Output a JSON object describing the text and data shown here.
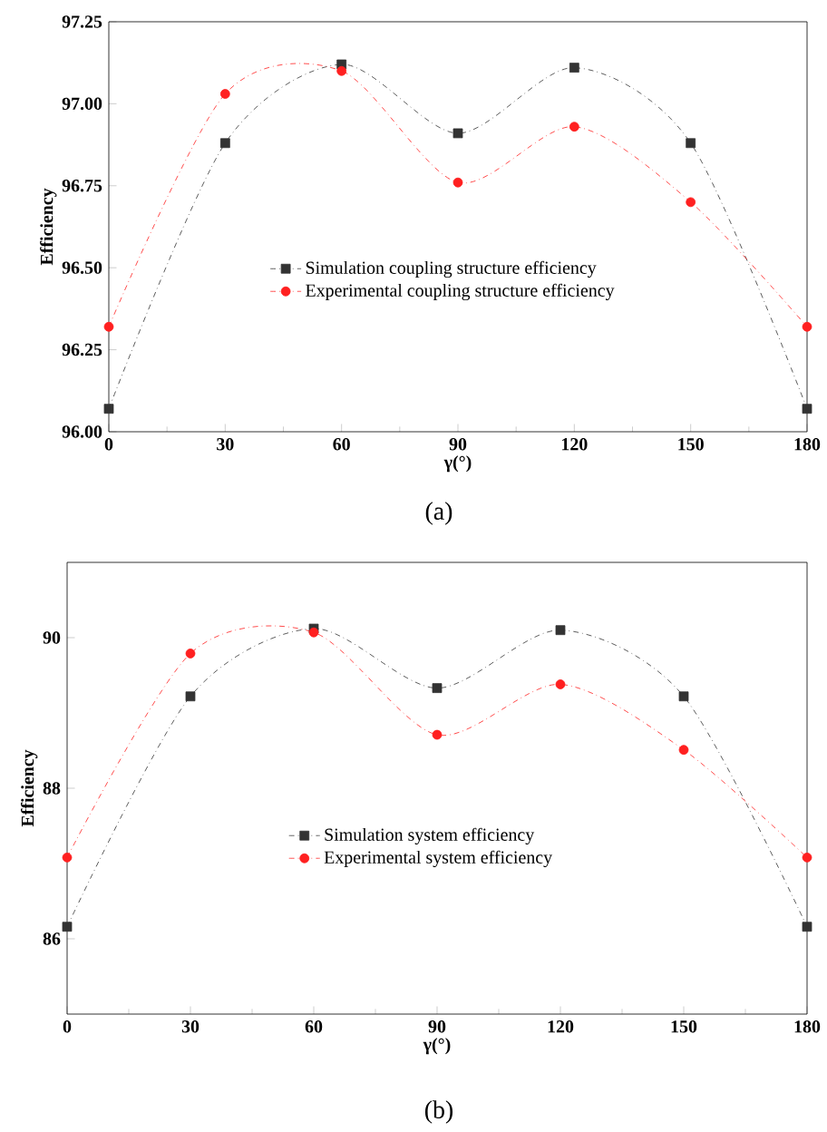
{
  "chart_data": [
    {
      "type": "line",
      "xlabel": "γ(°)",
      "ylabel": "Efficiency",
      "annotations": [
        "(a)"
      ],
      "x": [
        0,
        30,
        60,
        90,
        120,
        150,
        180
      ],
      "xlim": [
        0,
        180
      ],
      "xticks": [
        0,
        30,
        60,
        90,
        120,
        150,
        180
      ],
      "ylim": [
        96.0,
        97.25
      ],
      "yticks": [
        {
          "value": 96.0,
          "label": "96.00"
        },
        {
          "value": 96.25,
          "label": "96.25"
        },
        {
          "value": 96.5,
          "label": "96.50"
        },
        {
          "value": 96.75,
          "label": "96.75"
        },
        {
          "value": 97.0,
          "label": "97.00"
        },
        {
          "value": 97.25,
          "label": "97.25"
        }
      ],
      "legend": "center",
      "grid": false,
      "line_style": "dashdot",
      "series": [
        {
          "name": "Simulation coupling structure efficiency",
          "color": "#333333",
          "marker": "square",
          "values": [
            96.07,
            96.88,
            97.12,
            96.91,
            97.11,
            96.88,
            96.07
          ]
        },
        {
          "name": "Experimental coupling structure efficiency",
          "color": "#ff2020",
          "marker": "circle",
          "values": [
            96.32,
            97.03,
            97.1,
            96.76,
            96.93,
            96.7,
            96.32
          ]
        }
      ]
    },
    {
      "type": "line",
      "xlabel": "γ(°)",
      "ylabel": "Efficiency",
      "annotations": [
        "(b)"
      ],
      "x": [
        0,
        30,
        60,
        90,
        120,
        150,
        180
      ],
      "xlim": [
        0,
        180
      ],
      "xticks": [
        0,
        30,
        60,
        90,
        120,
        150,
        180
      ],
      "ylim": [
        85,
        91
      ],
      "yticks": [
        86,
        88,
        90
      ],
      "legend": "center",
      "grid": false,
      "line_style": "dashdot",
      "series": [
        {
          "name": "Simulation system efficiency",
          "color": "#333333",
          "marker": "square",
          "values": [
            86.16,
            89.22,
            90.12,
            89.33,
            90.1,
            89.22,
            86.16
          ]
        },
        {
          "name": "Experimental system efficiency",
          "color": "#ff2020",
          "marker": "circle",
          "values": [
            87.08,
            89.79,
            90.07,
            88.71,
            89.38,
            88.51,
            87.08
          ]
        }
      ]
    }
  ]
}
